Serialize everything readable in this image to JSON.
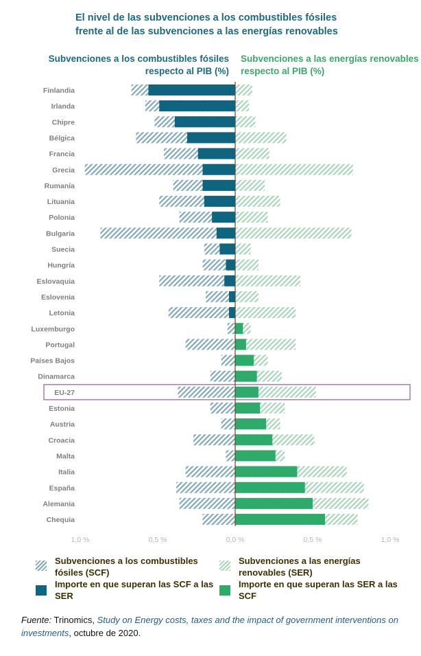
{
  "title": {
    "line1": "El nivel de las subvenciones a los combustibles fósiles",
    "line2": "frente al de las subvenciones a las energías renovables"
  },
  "headers": {
    "left_line1": "Subvenciones a los combustibles fósiles",
    "left_line2": "respecto al PIB (%)",
    "right_line1": "Subvenciones a las energías renovables",
    "right_line2": "respecto al PIB (%)"
  },
  "colors": {
    "scf_solid": "#0f6480",
    "scf_hatch": "#7fa9b8",
    "ser_solid": "#2eaa6a",
    "ser_hatch": "#a7d6bc",
    "highlight_box": "#9b6a9b",
    "axis": "#5a4a2a",
    "title": "#1b6a82",
    "label": "#7f7f7f"
  },
  "chart_data": {
    "type": "bar",
    "orientation": "horizontal-diverging",
    "title": "El nivel de las subvenciones a los combustibles fósiles frente al de las subvenciones a las energías renovables",
    "xlabel_left": "Subvenciones a los combustibles fósiles respecto al PIB (%)",
    "xlabel_right": "Subvenciones a las energías renovables respecto al PIB (%)",
    "xlim": [
      -1.0,
      1.0
    ],
    "ticks": [
      -1.0,
      -0.5,
      0.0,
      0.5,
      1.0
    ],
    "tick_labels": [
      "1,0 %",
      "0,5 %",
      "0,0 %",
      "0,5 %",
      "1,0 %"
    ],
    "highlight": "EU-27",
    "categories": [
      "Finlandia",
      "Irlanda",
      "Chipre",
      "Bélgica",
      "Francia",
      "Grecia",
      "Rumanía",
      "Lituania",
      "Polonia",
      "Bulgaria",
      "Suecia",
      "Hungría",
      "Eslovaquia",
      "Eslovenia",
      "Letonia",
      "Luxemburgo",
      "Portugal",
      "Países Bajos",
      "Dinamarca",
      "EU-27",
      "Estonia",
      "Austria",
      "Croacia",
      "Malta",
      "Italia",
      "España",
      "Alemania",
      "Chequia"
    ],
    "series": [
      {
        "name": "Subvenciones a los combustibles fósiles (SCF)",
        "values": [
          0.67,
          0.58,
          0.52,
          0.64,
          0.46,
          0.97,
          0.4,
          0.49,
          0.36,
          0.87,
          0.2,
          0.21,
          0.49,
          0.19,
          0.43,
          0.05,
          0.32,
          0.09,
          0.16,
          0.37,
          0.16,
          0.09,
          0.27,
          0.06,
          0.32,
          0.38,
          0.36,
          0.21
        ]
      },
      {
        "name": "Subvenciones a las energías renovables (SER)",
        "values": [
          0.11,
          0.09,
          0.13,
          0.33,
          0.22,
          0.76,
          0.19,
          0.29,
          0.21,
          0.75,
          0.1,
          0.15,
          0.42,
          0.15,
          0.39,
          0.1,
          0.39,
          0.21,
          0.3,
          0.52,
          0.32,
          0.29,
          0.51,
          0.32,
          0.72,
          0.83,
          0.86,
          0.79
        ]
      },
      {
        "name": "Importe en que superan las SCF a las SER",
        "values": [
          0.56,
          0.49,
          0.39,
          0.31,
          0.24,
          0.21,
          0.21,
          0.2,
          0.15,
          0.12,
          0.1,
          0.06,
          0.07,
          0.04,
          0.04,
          0,
          0,
          0,
          0,
          0,
          0,
          0,
          0,
          0,
          0,
          0,
          0,
          0
        ]
      },
      {
        "name": "Importe en que superan las SER a las SCF",
        "values": [
          0,
          0,
          0,
          0,
          0,
          0,
          0,
          0,
          0,
          0,
          0,
          0,
          0,
          0,
          0,
          0.05,
          0.07,
          0.12,
          0.14,
          0.15,
          0.16,
          0.2,
          0.24,
          0.26,
          0.4,
          0.45,
          0.5,
          0.58
        ]
      }
    ],
    "legend_position": "bottom"
  },
  "legend": {
    "scf_label_line1": "Subvenciones a los combustibles",
    "scf_label_line2": "fósiles (SCF)",
    "scf_excess_line1": "Importe en que superan las SCF a las",
    "scf_excess_line2": "SER",
    "ser_label_line1": "Subvenciones a las energías",
    "ser_label_line2": "renovables (SER)",
    "ser_excess_line1": "Importe en que superan las SER a las",
    "ser_excess_line2": "SCF"
  },
  "footer": {
    "source_label": "Fuente:",
    "publisher": " Trinomics, ",
    "study_title": "Study on Energy costs, taxes and the impact of government interventions on investments",
    "date": ", octubre de 2020."
  }
}
